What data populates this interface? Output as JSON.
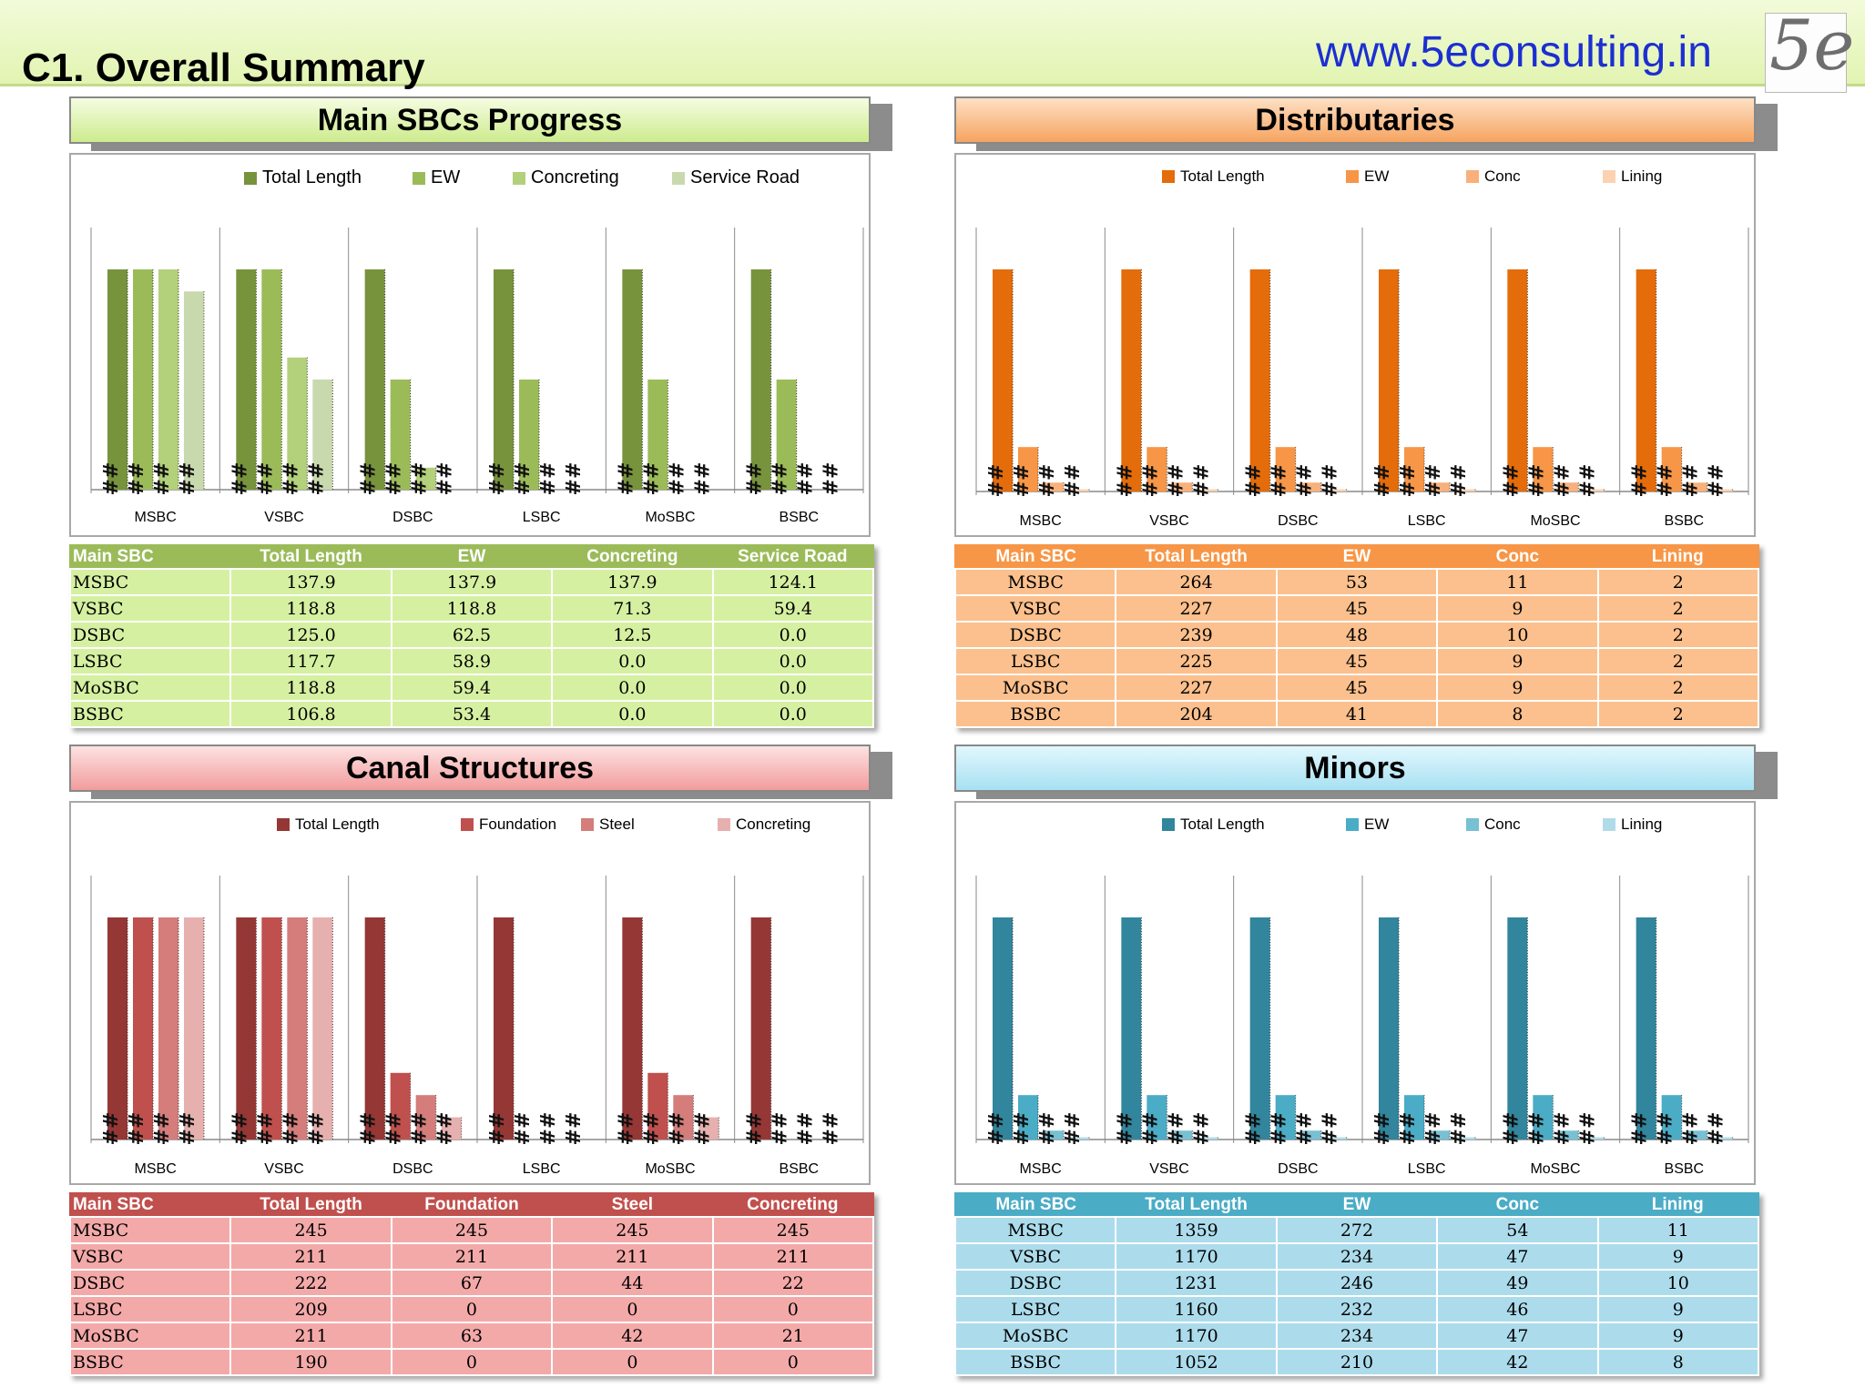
{
  "slide": {
    "title": "C1. Overall Summary",
    "website": "www.5econsulting.in",
    "logo_text": "5e"
  },
  "sections": [
    {
      "title": "Main SBCs Progress",
      "legend": [
        "Total Length",
        "EW",
        "Concreting",
        "Service Road"
      ],
      "colors": [
        "#77933c",
        "#9bbb59",
        "#b3d07a",
        "#c8d9ae"
      ],
      "table": {
        "headers": [
          "Main SBC",
          "Total Length",
          "EW",
          "Concreting",
          "Service Road"
        ],
        "rows": [
          [
            "MSBC",
            "137.9",
            "137.9",
            "137.9",
            "124.1"
          ],
          [
            "VSBC",
            "118.8",
            "118.8",
            "71.3",
            "59.4"
          ],
          [
            "DSBC",
            "125.0",
            "62.5",
            "12.5",
            "0.0"
          ],
          [
            "LSBC",
            "117.7",
            "58.9",
            "0.0",
            "0.0"
          ],
          [
            "MoSBC",
            "118.8",
            "59.4",
            "0.0",
            "0.0"
          ],
          [
            "BSBC",
            "106.8",
            "53.4",
            "0.0",
            "0.0"
          ]
        ]
      }
    },
    {
      "title": "Distributaries",
      "legend": [
        "Total Length",
        "EW",
        "Conc",
        "Lining"
      ],
      "colors": [
        "#e46c0a",
        "#f79646",
        "#f9b07a",
        "#fcd2b2"
      ],
      "table": {
        "headers": [
          "Main SBC",
          "Total Length",
          "EW",
          "Conc",
          "Lining"
        ],
        "rows": [
          [
            "MSBC",
            "264",
            "53",
            "11",
            "2"
          ],
          [
            "VSBC",
            "227",
            "45",
            "9",
            "2"
          ],
          [
            "DSBC",
            "239",
            "48",
            "10",
            "2"
          ],
          [
            "LSBC",
            "225",
            "45",
            "9",
            "2"
          ],
          [
            "MoSBC",
            "227",
            "45",
            "9",
            "2"
          ],
          [
            "BSBC",
            "204",
            "41",
            "8",
            "2"
          ]
        ]
      }
    },
    {
      "title": "Canal Structures",
      "legend": [
        "Total Length",
        "Foundation",
        "Steel",
        "Concreting"
      ],
      "colors": [
        "#953735",
        "#c0504d",
        "#d47d7b",
        "#e6b0ae"
      ],
      "table": {
        "headers": [
          "Main SBC",
          "Total Length",
          "Foundation",
          "Steel",
          "Concreting"
        ],
        "rows": [
          [
            "MSBC",
            "245",
            "245",
            "245",
            "245"
          ],
          [
            "VSBC",
            "211",
            "211",
            "211",
            "211"
          ],
          [
            "DSBC",
            "222",
            "67",
            "44",
            "22"
          ],
          [
            "LSBC",
            "209",
            "0",
            "0",
            "0"
          ],
          [
            "MoSBC",
            "211",
            "63",
            "42",
            "21"
          ],
          [
            "BSBC",
            "190",
            "0",
            "0",
            "0"
          ]
        ]
      }
    },
    {
      "title": "Minors",
      "legend": [
        "Total Length",
        "EW",
        "Conc",
        "Lining"
      ],
      "colors": [
        "#31859c",
        "#4bacc6",
        "#78c0d4",
        "#b0dbe8"
      ],
      "table": {
        "headers": [
          "Main SBC",
          "Total Length",
          "EW",
          "Conc",
          "Lining"
        ],
        "rows": [
          [
            "MSBC",
            "1359",
            "272",
            "54",
            "11"
          ],
          [
            "VSBC",
            "1170",
            "234",
            "47",
            "9"
          ],
          [
            "DSBC",
            "1231",
            "246",
            "49",
            "10"
          ],
          [
            "LSBC",
            "1160",
            "232",
            "46",
            "9"
          ],
          [
            "MoSBC",
            "1170",
            "234",
            "47",
            "9"
          ],
          [
            "BSBC",
            "1052",
            "210",
            "42",
            "8"
          ]
        ]
      }
    }
  ],
  "chart_data": [
    {
      "type": "bar",
      "categories": [
        "MSBC",
        "VSBC",
        "DSBC",
        "LSBC",
        "MoSBC",
        "BSBC"
      ],
      "series": [
        {
          "name": "Total Length",
          "values": [
            100,
            100,
            100,
            100,
            100,
            100
          ]
        },
        {
          "name": "EW",
          "values": [
            100,
            100,
            50,
            50,
            50,
            50
          ]
        },
        {
          "name": "Concreting",
          "values": [
            100,
            60,
            10,
            0,
            0,
            0
          ]
        },
        {
          "name": "Service Road",
          "values": [
            90,
            50,
            0,
            0,
            0,
            0
          ]
        }
      ],
      "ylim": [
        0,
        100
      ],
      "data_labels": "#########"
    },
    {
      "type": "bar",
      "categories": [
        "MSBC",
        "VSBC",
        "DSBC",
        "LSBC",
        "MoSBC",
        "BSBC"
      ],
      "series": [
        {
          "name": "Total Length",
          "values": [
            100,
            100,
            100,
            100,
            100,
            100
          ]
        },
        {
          "name": "EW",
          "values": [
            20,
            20,
            20,
            20,
            20,
            20
          ]
        },
        {
          "name": "Conc",
          "values": [
            4,
            4,
            4,
            4,
            4,
            4
          ]
        },
        {
          "name": "Lining",
          "values": [
            1,
            1,
            1,
            1,
            1,
            1
          ]
        }
      ],
      "ylim": [
        0,
        100
      ],
      "data_labels": "#########"
    },
    {
      "type": "bar",
      "categories": [
        "MSBC",
        "VSBC",
        "DSBC",
        "LSBC",
        "MoSBC",
        "BSBC"
      ],
      "series": [
        {
          "name": "Total Length",
          "values": [
            100,
            100,
            100,
            100,
            100,
            100
          ]
        },
        {
          "name": "Foundation",
          "values": [
            100,
            100,
            30,
            0,
            30,
            0
          ]
        },
        {
          "name": "Steel",
          "values": [
            100,
            100,
            20,
            0,
            20,
            0
          ]
        },
        {
          "name": "Concreting",
          "values": [
            100,
            100,
            10,
            0,
            10,
            0
          ]
        }
      ],
      "ylim": [
        0,
        100
      ],
      "data_labels": "#########"
    },
    {
      "type": "bar",
      "categories": [
        "MSBC",
        "VSBC",
        "DSBC",
        "LSBC",
        "MoSBC",
        "BSBC"
      ],
      "series": [
        {
          "name": "Total Length",
          "values": [
            100,
            100,
            100,
            100,
            100,
            100
          ]
        },
        {
          "name": "EW",
          "values": [
            20,
            20,
            20,
            20,
            20,
            20
          ]
        },
        {
          "name": "Conc",
          "values": [
            4,
            4,
            4,
            4,
            4,
            4
          ]
        },
        {
          "name": "Lining",
          "values": [
            1,
            1,
            1,
            1,
            1,
            1
          ]
        }
      ],
      "ylim": [
        0,
        100
      ],
      "data_labels": "#########"
    }
  ]
}
